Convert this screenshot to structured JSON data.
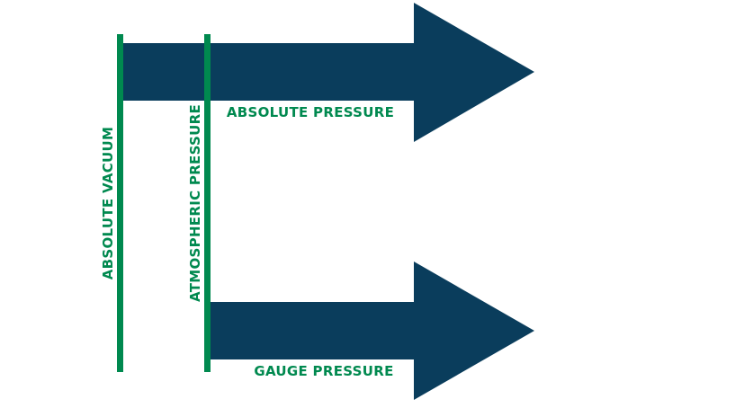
{
  "colors": {
    "arrow": "#0a3d5c",
    "line": "#00894f",
    "text": "#00894f",
    "background": "#ffffff"
  },
  "labels": {
    "absolute_vacuum": "ABSOLUTE VACUUM",
    "atmospheric_pressure": "ATMOSPHERIC PRESSURE",
    "absolute_pressure": "ABSOLUTE PRESSURE",
    "gauge_pressure": "GAUGE PRESSURE"
  }
}
